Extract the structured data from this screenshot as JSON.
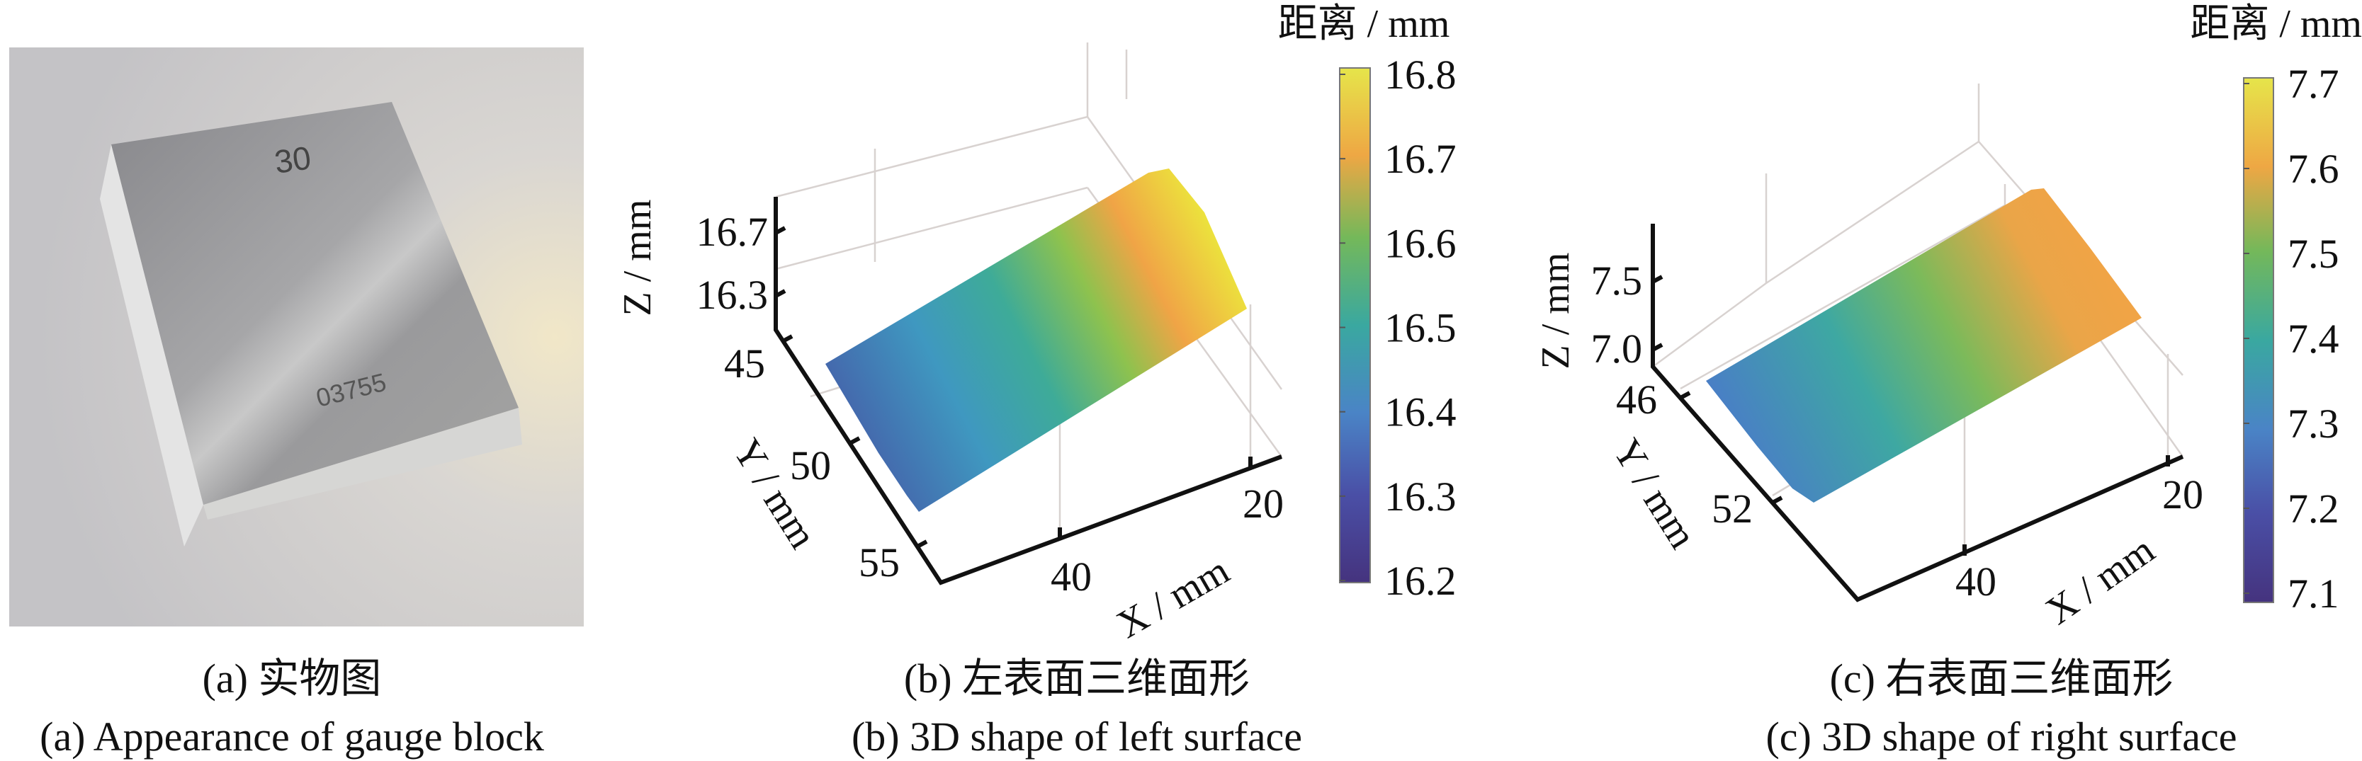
{
  "panels": {
    "a": {
      "photo_marks": {
        "top": "30",
        "serial": "03755"
      },
      "caption_cn": "(a) 实物图",
      "caption_en": "(a) Appearance of gauge block"
    },
    "b": {
      "caption_cn": "(b) 左表面三维面形",
      "caption_en": "(b) 3D shape of left surface"
    },
    "c": {
      "caption_cn": "(c) 右表面三维面形",
      "caption_en": "(c) 3D shape of right surface"
    }
  },
  "chart_data": [
    {
      "type": "surface3d",
      "title": "(b) 3D shape of left surface",
      "xlabel": "X / mm",
      "ylabel": "Y / mm",
      "zlabel": "Z / mm",
      "xticks": [
        "40",
        "20"
      ],
      "yticks": [
        "45",
        "50",
        "55"
      ],
      "zticks": [
        "16.7",
        "16.3"
      ],
      "colorbar": {
        "label": "距离 / mm",
        "range": [
          16.2,
          16.8
        ],
        "ticks": [
          "16.2",
          "16.3",
          "16.4",
          "16.5",
          "16.6",
          "16.7",
          "16.8"
        ],
        "colormap": "parula"
      },
      "surface_value_range": [
        16.35,
        16.8
      ],
      "colors": {
        "low": "#4660b0",
        "mid": "#3aa79c",
        "high": "#ece53c"
      }
    },
    {
      "type": "surface3d",
      "title": "(c) 3D shape of right surface",
      "xlabel": "X / mm",
      "ylabel": "Y / mm",
      "zlabel": "Z / mm",
      "xticks": [
        "40",
        "20"
      ],
      "yticks": [
        "46",
        "52"
      ],
      "zticks": [
        "7.5",
        "7.0"
      ],
      "colorbar": {
        "label": "距离 / mm",
        "range": [
          7.1,
          7.7
        ],
        "ticks": [
          "7.1",
          "7.2",
          "7.3",
          "7.4",
          "7.5",
          "7.6",
          "7.7"
        ],
        "colormap": "parula"
      },
      "surface_value_range": [
        7.3,
        7.62
      ],
      "colors": {
        "low": "#4a86c8",
        "mid": "#58b47a",
        "high": "#f0a446"
      }
    }
  ]
}
